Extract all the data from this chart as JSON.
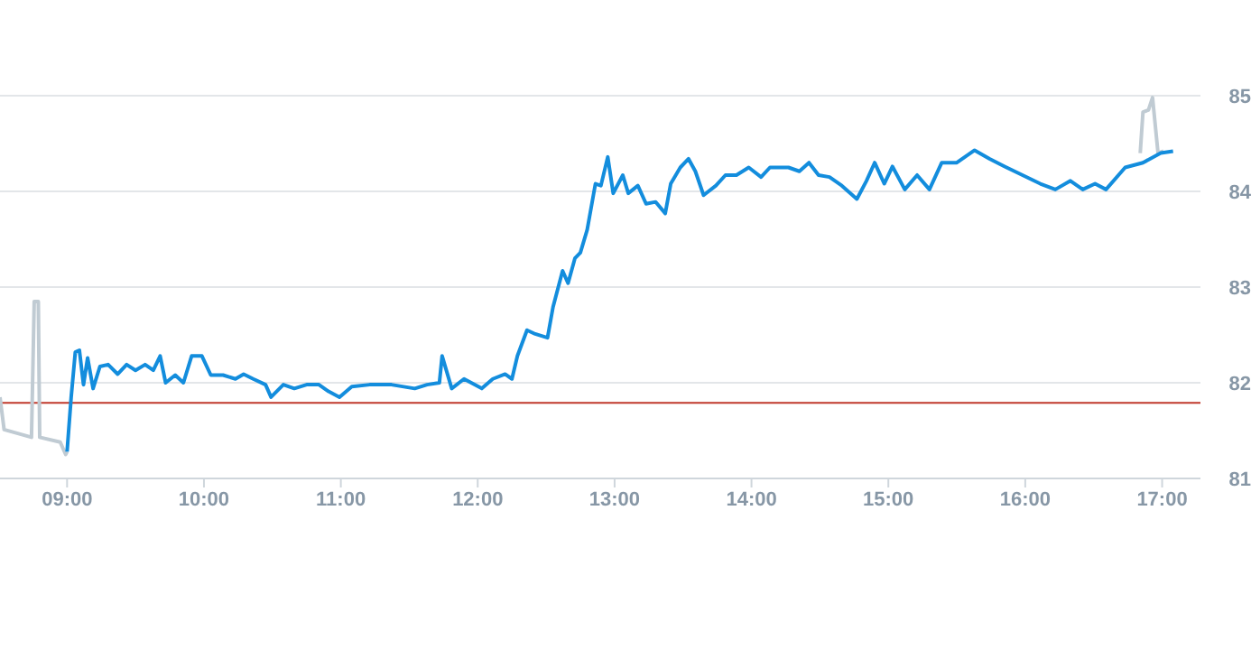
{
  "chart_data": {
    "type": "line",
    "xlim": [
      8.51,
      17.28
    ],
    "ylim": [
      81,
      85
    ],
    "xticks": [
      {
        "value": 9,
        "label": "09:00"
      },
      {
        "value": 10,
        "label": "10:00"
      },
      {
        "value": 11,
        "label": "11:00"
      },
      {
        "value": 12,
        "label": "12:00"
      },
      {
        "value": 13,
        "label": "13:00"
      },
      {
        "value": 14,
        "label": "14:00"
      },
      {
        "value": 15,
        "label": "15:00"
      },
      {
        "value": 16,
        "label": "16:00"
      },
      {
        "value": 17,
        "label": "17:00"
      }
    ],
    "yticks": [
      81,
      82,
      83,
      84,
      85
    ],
    "grid": "y",
    "marker": "none",
    "line_style": "solid",
    "ref_lines": [
      {
        "axis": "y",
        "value": 81.79,
        "color": "#c0392b"
      }
    ],
    "series": [
      {
        "color": "#c0cbd3",
        "x": [
          8.51,
          8.54,
          8.74,
          8.76,
          8.79,
          8.8,
          8.95,
          8.99,
          9.0
        ],
        "values": [
          81.85,
          81.51,
          81.43,
          82.85,
          82.85,
          81.43,
          81.38,
          81.25,
          81.28
        ]
      },
      {
        "color": "#c0cbd3",
        "x": [
          16.84,
          16.86,
          16.9,
          16.93,
          16.97,
          17.01
        ],
        "values": [
          84.4,
          84.83,
          84.85,
          84.98,
          84.4,
          84.42
        ]
      },
      {
        "color": "#138ddd",
        "x": [
          9.0,
          9.03,
          9.06,
          9.09,
          9.12,
          9.15,
          9.19,
          9.24,
          9.3,
          9.37,
          9.435,
          9.5,
          9.57,
          9.63,
          9.68,
          9.72,
          9.79,
          9.85,
          9.91,
          9.985,
          10.05,
          10.14,
          10.23,
          10.29,
          10.36,
          10.45,
          10.49,
          10.58,
          10.66,
          10.75,
          10.84,
          10.91,
          10.99,
          11.08,
          11.21,
          11.37,
          11.54,
          11.63,
          11.72,
          11.74,
          11.81,
          11.9,
          12.03,
          12.11,
          12.2,
          12.25,
          12.29,
          12.36,
          12.42,
          12.51,
          12.55,
          12.62,
          12.66,
          12.71,
          12.75,
          12.8,
          12.86,
          12.9,
          12.95,
          12.99,
          13.06,
          13.1,
          13.17,
          13.23,
          13.3,
          13.37,
          13.41,
          13.48,
          13.54,
          13.59,
          13.65,
          13.74,
          13.81,
          13.89,
          13.98,
          14.07,
          14.135,
          14.27,
          14.35,
          14.42,
          14.49,
          14.57,
          14.66,
          14.77,
          14.84,
          14.9,
          14.97,
          15.03,
          15.12,
          15.21,
          15.3,
          15.39,
          15.5,
          15.63,
          15.74,
          15.85,
          15.98,
          16.11,
          16.22,
          16.33,
          16.42,
          16.51,
          16.59,
          16.73,
          16.86,
          16.99,
          17.08
        ],
        "values": [
          81.28,
          81.85,
          82.32,
          82.34,
          81.98,
          82.26,
          81.94,
          82.17,
          82.19,
          82.09,
          82.19,
          82.13,
          82.19,
          82.13,
          82.28,
          82.0,
          82.08,
          82.0,
          82.28,
          82.28,
          82.08,
          82.08,
          82.04,
          82.09,
          82.04,
          81.98,
          81.85,
          81.98,
          81.94,
          81.98,
          81.98,
          81.91,
          81.85,
          81.96,
          81.98,
          81.98,
          81.94,
          81.98,
          82.0,
          82.28,
          81.94,
          82.04,
          81.94,
          82.04,
          82.09,
          82.04,
          82.28,
          82.55,
          82.51,
          82.47,
          82.79,
          83.17,
          83.04,
          83.3,
          83.36,
          83.6,
          84.08,
          84.06,
          84.36,
          83.98,
          84.17,
          83.98,
          84.06,
          83.87,
          83.89,
          83.77,
          84.08,
          84.25,
          84.34,
          84.21,
          83.96,
          84.06,
          84.17,
          84.17,
          84.25,
          84.15,
          84.25,
          84.25,
          84.21,
          84.3,
          84.17,
          84.15,
          84.06,
          83.92,
          84.11,
          84.3,
          84.08,
          84.26,
          84.02,
          84.17,
          84.02,
          84.3,
          84.3,
          84.43,
          84.34,
          84.26,
          84.17,
          84.08,
          84.02,
          84.11,
          84.02,
          84.08,
          84.02,
          84.25,
          84.3,
          84.4,
          84.42
        ]
      }
    ]
  }
}
